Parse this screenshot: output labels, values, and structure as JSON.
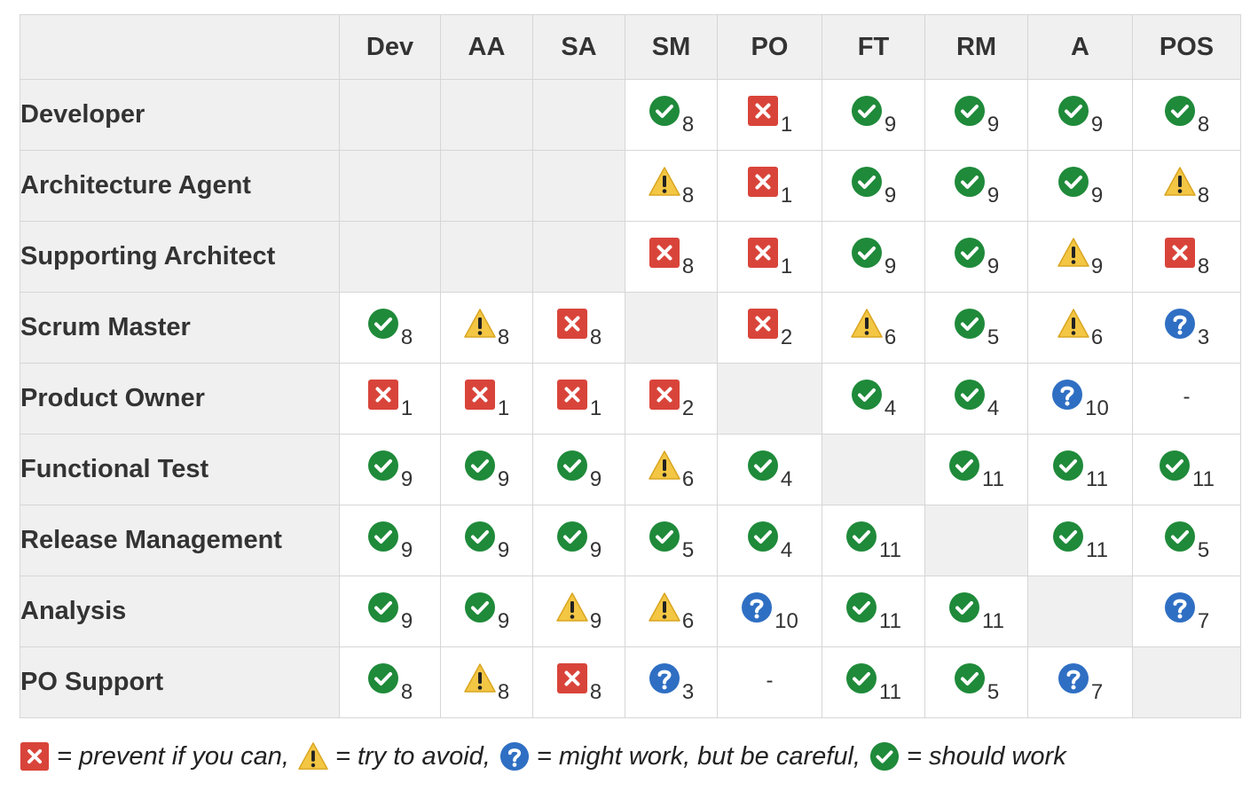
{
  "columns": [
    "Dev",
    "AA",
    "SA",
    "SM",
    "PO",
    "FT",
    "RM",
    "A",
    "POS"
  ],
  "rows": [
    {
      "label": "Developer",
      "cells": [
        {
          "icon": "empty"
        },
        {
          "icon": "empty"
        },
        {
          "icon": "empty"
        },
        {
          "icon": "check",
          "value": "8"
        },
        {
          "icon": "cross",
          "value": "1"
        },
        {
          "icon": "check",
          "value": "9"
        },
        {
          "icon": "check",
          "value": "9"
        },
        {
          "icon": "check",
          "value": "9"
        },
        {
          "icon": "check",
          "value": "8"
        }
      ]
    },
    {
      "label": "Architecture Agent",
      "cells": [
        {
          "icon": "empty"
        },
        {
          "icon": "empty"
        },
        {
          "icon": "empty"
        },
        {
          "icon": "warn",
          "value": "8"
        },
        {
          "icon": "cross",
          "value": "1"
        },
        {
          "icon": "check",
          "value": "9"
        },
        {
          "icon": "check",
          "value": "9"
        },
        {
          "icon": "check",
          "value": "9"
        },
        {
          "icon": "warn",
          "value": "8"
        }
      ]
    },
    {
      "label": "Supporting Architect",
      "cells": [
        {
          "icon": "empty"
        },
        {
          "icon": "empty"
        },
        {
          "icon": "empty"
        },
        {
          "icon": "cross",
          "value": "8"
        },
        {
          "icon": "cross",
          "value": "1"
        },
        {
          "icon": "check",
          "value": "9"
        },
        {
          "icon": "check",
          "value": "9"
        },
        {
          "icon": "warn",
          "value": "9"
        },
        {
          "icon": "cross",
          "value": "8"
        }
      ]
    },
    {
      "label": "Scrum Master",
      "cells": [
        {
          "icon": "check",
          "value": "8"
        },
        {
          "icon": "warn",
          "value": "8"
        },
        {
          "icon": "cross",
          "value": "8"
        },
        {
          "icon": "empty"
        },
        {
          "icon": "cross",
          "value": "2"
        },
        {
          "icon": "warn",
          "value": "6"
        },
        {
          "icon": "check",
          "value": "5"
        },
        {
          "icon": "warn",
          "value": "6"
        },
        {
          "icon": "question",
          "value": "3"
        }
      ]
    },
    {
      "label": "Product Owner",
      "cells": [
        {
          "icon": "cross",
          "value": "1"
        },
        {
          "icon": "cross",
          "value": "1"
        },
        {
          "icon": "cross",
          "value": "1"
        },
        {
          "icon": "cross",
          "value": "2"
        },
        {
          "icon": "empty"
        },
        {
          "icon": "check",
          "value": "4"
        },
        {
          "icon": "check",
          "value": "4"
        },
        {
          "icon": "question",
          "value": "10"
        },
        {
          "icon": "dash",
          "value": "-"
        }
      ]
    },
    {
      "label": "Functional Test",
      "cells": [
        {
          "icon": "check",
          "value": "9"
        },
        {
          "icon": "check",
          "value": "9"
        },
        {
          "icon": "check",
          "value": "9"
        },
        {
          "icon": "warn",
          "value": "6"
        },
        {
          "icon": "check",
          "value": "4"
        },
        {
          "icon": "empty"
        },
        {
          "icon": "check",
          "value": "11"
        },
        {
          "icon": "check",
          "value": "11"
        },
        {
          "icon": "check",
          "value": "11"
        }
      ]
    },
    {
      "label": "Release Management",
      "cells": [
        {
          "icon": "check",
          "value": "9"
        },
        {
          "icon": "check",
          "value": "9"
        },
        {
          "icon": "check",
          "value": "9"
        },
        {
          "icon": "check",
          "value": "5"
        },
        {
          "icon": "check",
          "value": "4"
        },
        {
          "icon": "check",
          "value": "11"
        },
        {
          "icon": "empty"
        },
        {
          "icon": "check",
          "value": "11"
        },
        {
          "icon": "check",
          "value": "5"
        }
      ]
    },
    {
      "label": "Analysis",
      "cells": [
        {
          "icon": "check",
          "value": "9"
        },
        {
          "icon": "check",
          "value": "9"
        },
        {
          "icon": "warn",
          "value": "9"
        },
        {
          "icon": "warn",
          "value": "6"
        },
        {
          "icon": "question",
          "value": "10"
        },
        {
          "icon": "check",
          "value": "11"
        },
        {
          "icon": "check",
          "value": "11"
        },
        {
          "icon": "empty"
        },
        {
          "icon": "question",
          "value": "7"
        }
      ]
    },
    {
      "label": "PO Support",
      "cells": [
        {
          "icon": "check",
          "value": "8"
        },
        {
          "icon": "warn",
          "value": "8"
        },
        {
          "icon": "cross",
          "value": "8"
        },
        {
          "icon": "question",
          "value": "3"
        },
        {
          "icon": "dash",
          "value": "-"
        },
        {
          "icon": "check",
          "value": "11"
        },
        {
          "icon": "check",
          "value": "5"
        },
        {
          "icon": "question",
          "value": "7"
        },
        {
          "icon": "empty"
        }
      ]
    }
  ],
  "legend": [
    {
      "icon": "cross",
      "text": "= prevent if you can,"
    },
    {
      "icon": "warn",
      "text": "= try to avoid,"
    },
    {
      "icon": "question",
      "text": "= might work, but be careful,"
    },
    {
      "icon": "check",
      "text": "= should work"
    }
  ],
  "icon_names": {
    "check": "check-circle-icon",
    "cross": "cross-square-icon",
    "warn": "warning-triangle-icon",
    "question": "question-circle-icon"
  },
  "colors": {
    "check": "#1f8a3a",
    "cross": "#d9443a",
    "warn": "#f3c644",
    "question": "#2f6fc3",
    "header_bg": "#f0f0f0",
    "border": "#d6d6d6"
  }
}
